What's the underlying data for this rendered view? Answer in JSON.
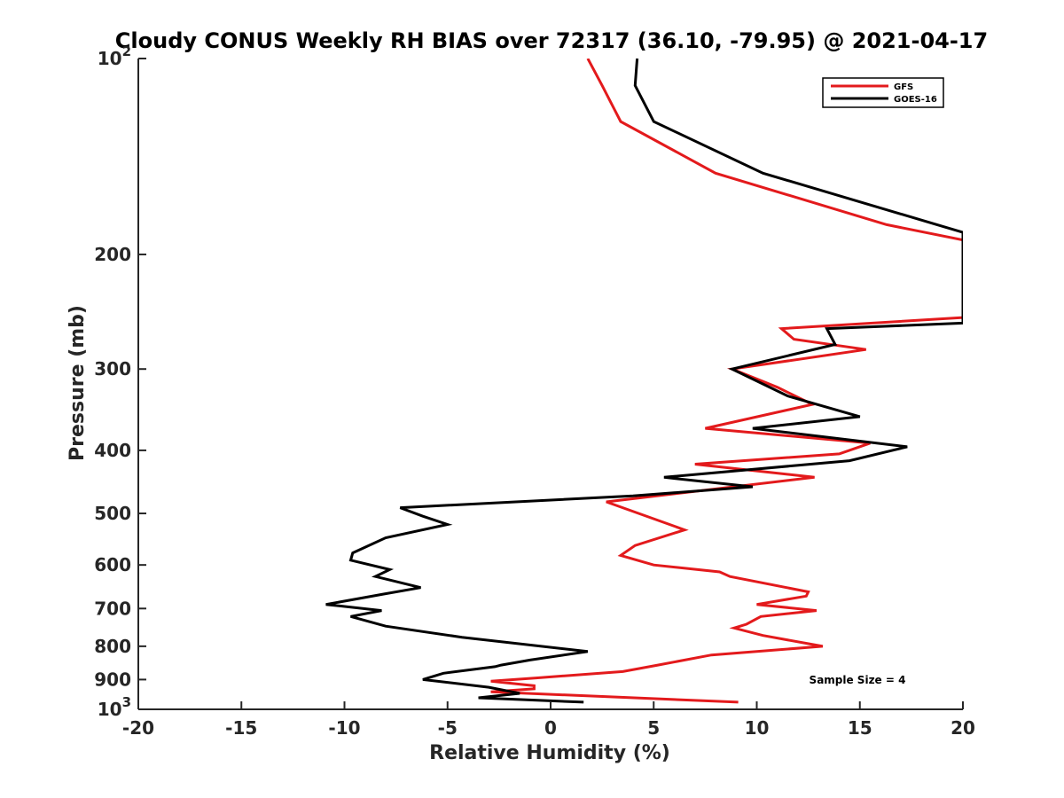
{
  "chart_data": {
    "type": "line",
    "title": "Cloudy CONUS Weekly RH BIAS over 72317 (36.10, -79.95) @ 2021-04-17",
    "xlabel": "Relative Humidity (%)",
    "ylabel": "Pressure (mb)",
    "xlim": [
      -20,
      20
    ],
    "ylim": [
      100,
      1000
    ],
    "y_scale": "log",
    "y_reversed": true,
    "x_ticks": [
      "-20",
      "-15",
      "-10",
      "-5",
      "0",
      "5",
      "10",
      "15",
      "20"
    ],
    "y_ticks": [
      {
        "value": 100,
        "base": "10",
        "exp": "2"
      },
      {
        "value": 200,
        "base": "200",
        "exp": ""
      },
      {
        "value": 300,
        "base": "300",
        "exp": ""
      },
      {
        "value": 400,
        "base": "400",
        "exp": ""
      },
      {
        "value": 500,
        "base": "500",
        "exp": ""
      },
      {
        "value": 600,
        "base": "600",
        "exp": ""
      },
      {
        "value": 700,
        "base": "700",
        "exp": ""
      },
      {
        "value": 800,
        "base": "800",
        "exp": ""
      },
      {
        "value": 900,
        "base": "900",
        "exp": ""
      },
      {
        "value": 1000,
        "base": "10",
        "exp": "3"
      }
    ],
    "grid": false,
    "legend_position": "top-right",
    "annotation": "Sample Size = 4",
    "series": [
      {
        "name": "GFS",
        "color": "#e31a1c",
        "points": [
          [
            1.8,
            100
          ],
          [
            2.5,
            110
          ],
          [
            3.4,
            125
          ],
          [
            8.0,
            150
          ],
          [
            16.3,
            180
          ],
          [
            20.0,
            190
          ],
          [
            20.0,
            250
          ],
          [
            11.2,
            260
          ],
          [
            11.8,
            270
          ],
          [
            15.3,
            280
          ],
          [
            8.8,
            300
          ],
          [
            11.0,
            320
          ],
          [
            12.7,
            340
          ],
          [
            7.5,
            370
          ],
          [
            15.5,
            390
          ],
          [
            14.0,
            405
          ],
          [
            7.0,
            420
          ],
          [
            12.8,
            440
          ],
          [
            2.7,
            480
          ],
          [
            6.5,
            530
          ],
          [
            4.1,
            560
          ],
          [
            3.4,
            580
          ],
          [
            5.0,
            600
          ],
          [
            8.2,
            615
          ],
          [
            8.7,
            625
          ],
          [
            12.5,
            660
          ],
          [
            12.4,
            670
          ],
          [
            10.0,
            690
          ],
          [
            12.9,
            705
          ],
          [
            10.2,
            720
          ],
          [
            9.5,
            740
          ],
          [
            8.9,
            750
          ],
          [
            10.3,
            770
          ],
          [
            13.2,
            800
          ],
          [
            7.8,
            825
          ],
          [
            5.2,
            855
          ],
          [
            3.5,
            875
          ],
          [
            -0.7,
            895
          ],
          [
            -2.9,
            905
          ],
          [
            -0.8,
            920
          ],
          [
            -0.8,
            930
          ],
          [
            -2.9,
            940
          ],
          [
            9.1,
            975
          ]
        ]
      },
      {
        "name": "GOES-16",
        "color": "#000000",
        "points": [
          [
            4.2,
            100
          ],
          [
            4.1,
            110
          ],
          [
            5.0,
            125
          ],
          [
            10.3,
            150
          ],
          [
            20.0,
            185
          ],
          [
            20.0,
            255
          ],
          [
            13.4,
            260
          ],
          [
            13.8,
            275
          ],
          [
            8.8,
            300
          ],
          [
            11.5,
            330
          ],
          [
            15.0,
            355
          ],
          [
            9.8,
            370
          ],
          [
            17.3,
            395
          ],
          [
            14.5,
            415
          ],
          [
            5.5,
            440
          ],
          [
            9.8,
            455
          ],
          [
            4.0,
            470
          ],
          [
            -7.3,
            490
          ],
          [
            -6.2,
            505
          ],
          [
            -5.0,
            520
          ],
          [
            -8.0,
            545
          ],
          [
            -9.6,
            575
          ],
          [
            -9.7,
            590
          ],
          [
            -7.8,
            610
          ],
          [
            -8.5,
            625
          ],
          [
            -6.3,
            650
          ],
          [
            -8.1,
            665
          ],
          [
            -10.9,
            690
          ],
          [
            -8.2,
            705
          ],
          [
            -9.7,
            720
          ],
          [
            -8.0,
            745
          ],
          [
            -4.3,
            775
          ],
          [
            1.8,
            815
          ],
          [
            -1.0,
            840
          ],
          [
            -2.4,
            855
          ],
          [
            -2.7,
            860
          ],
          [
            -5.2,
            880
          ],
          [
            -6.2,
            900
          ],
          [
            -3.0,
            925
          ],
          [
            -1.5,
            945
          ],
          [
            -3.5,
            960
          ],
          [
            1.6,
            975
          ]
        ]
      }
    ]
  }
}
